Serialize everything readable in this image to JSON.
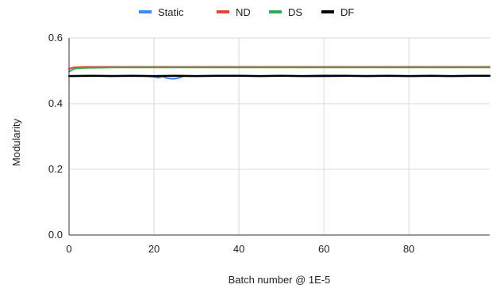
{
  "chart_data": {
    "type": "line",
    "xlabel": "Batch number @ 1E-5",
    "ylabel": "Modularity",
    "xlim": [
      0,
      99
    ],
    "ylim": [
      0,
      0.6
    ],
    "x_ticks": [
      0,
      20,
      40,
      60,
      80
    ],
    "y_ticks": [
      0.0,
      0.2,
      0.4,
      0.6
    ],
    "y_tick_labels": [
      "0.0",
      "0.2",
      "0.4",
      "0.6"
    ],
    "grid": true,
    "legend_position": "top",
    "series": [
      {
        "name": "Static",
        "color": "#4285F4",
        "x": [
          0,
          5,
          10,
          15,
          18,
          20,
          21,
          22,
          23,
          24,
          25,
          26,
          27,
          30,
          35,
          40,
          45,
          50,
          55,
          60,
          65,
          70,
          75,
          80,
          85,
          90,
          95,
          99
        ],
        "values": [
          0.484,
          0.484,
          0.485,
          0.484,
          0.484,
          0.482,
          0.479,
          0.483,
          0.478,
          0.476,
          0.476,
          0.479,
          0.484,
          0.484,
          0.484,
          0.485,
          0.484,
          0.485,
          0.484,
          0.483,
          0.484,
          0.485,
          0.484,
          0.484,
          0.484,
          0.484,
          0.484,
          0.484
        ]
      },
      {
        "name": "ND",
        "color": "#EA4335",
        "x": [
          0,
          1,
          2,
          4,
          10,
          20,
          40,
          60,
          80,
          99
        ],
        "values": [
          0.506,
          0.51,
          0.511,
          0.512,
          0.512,
          0.512,
          0.512,
          0.512,
          0.512,
          0.512
        ]
      },
      {
        "name": "DS",
        "color": "#34A853",
        "x": [
          0,
          1,
          2,
          4,
          10,
          20,
          40,
          60,
          80,
          99
        ],
        "values": [
          0.497,
          0.505,
          0.508,
          0.509,
          0.51,
          0.51,
          0.51,
          0.51,
          0.51,
          0.51
        ]
      },
      {
        "name": "DF",
        "color": "#000000",
        "x": [
          0,
          5,
          10,
          15,
          20,
          25,
          30,
          35,
          40,
          45,
          50,
          55,
          60,
          65,
          70,
          75,
          80,
          85,
          90,
          95,
          99
        ],
        "values": [
          0.484,
          0.485,
          0.484,
          0.485,
          0.484,
          0.485,
          0.484,
          0.485,
          0.485,
          0.484,
          0.485,
          0.484,
          0.485,
          0.485,
          0.484,
          0.485,
          0.484,
          0.485,
          0.484,
          0.485,
          0.485
        ]
      }
    ]
  }
}
